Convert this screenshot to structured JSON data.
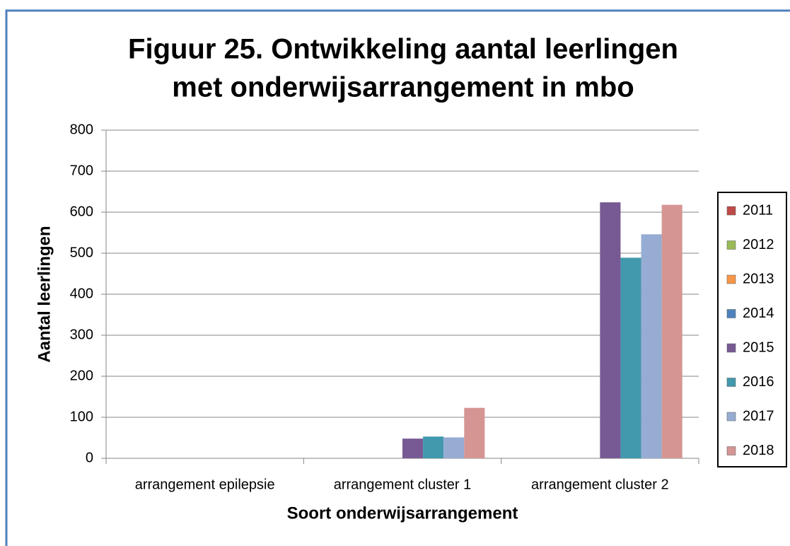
{
  "chart_data": {
    "type": "bar",
    "title": [
      "Figuur 25. Ontwikkeling aantal leerlingen",
      "met onderwijsarrangement in mbo"
    ],
    "x_label": "Soort onderwijsarrangement",
    "y_label": "Aantal leerlingen",
    "categories": [
      "arrangement epilepsie",
      "arrangement cluster 1",
      "arrangement cluster 2"
    ],
    "series": [
      {
        "name": "2011",
        "color": "#be4b48",
        "values": [
          null,
          null,
          null
        ]
      },
      {
        "name": "2012",
        "color": "#9bbb59",
        "values": [
          null,
          null,
          null
        ]
      },
      {
        "name": "2013",
        "color": "#f79646",
        "values": [
          null,
          null,
          null
        ]
      },
      {
        "name": "2014",
        "color": "#4f81bd",
        "values": [
          null,
          null,
          null
        ]
      },
      {
        "name": "2015",
        "color": "#775a93",
        "values": [
          null,
          48,
          624
        ]
      },
      {
        "name": "2016",
        "color": "#4299ad",
        "values": [
          null,
          53,
          489
        ]
      },
      {
        "name": "2017",
        "color": "#96acd3",
        "values": [
          null,
          51,
          546
        ]
      },
      {
        "name": "2018",
        "color": "#d59593",
        "values": [
          null,
          123,
          618
        ]
      }
    ],
    "ylim": [
      0,
      800
    ],
    "yticks": [
      0,
      100,
      200,
      300,
      400,
      500,
      600,
      700,
      800
    ],
    "grid": true,
    "legend": "right"
  }
}
